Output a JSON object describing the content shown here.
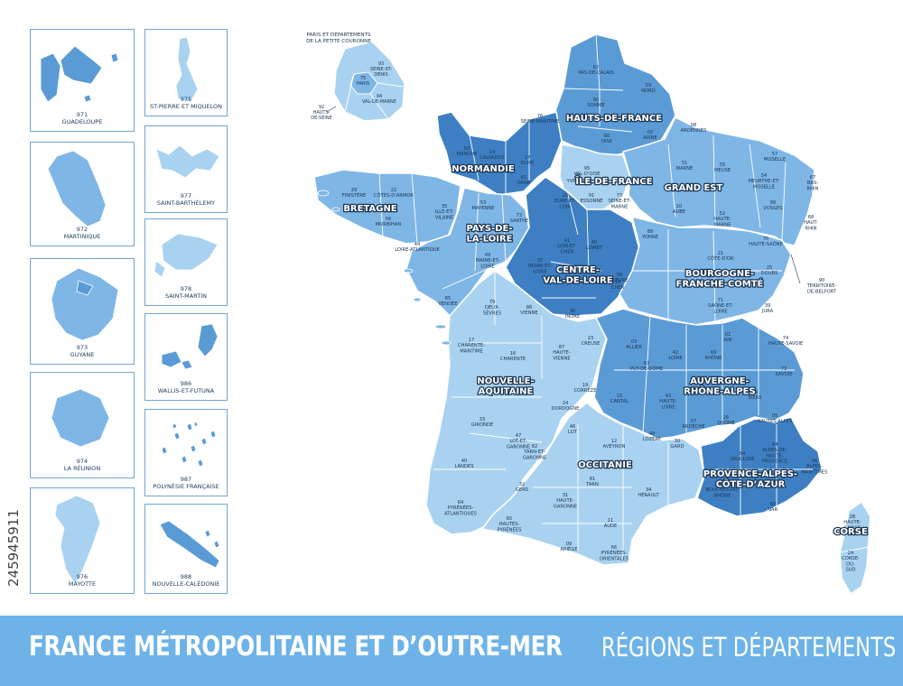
{
  "footer": {
    "title": "FRANCE MÉTROPOLITAINE ET D’OUTRE-MER",
    "subtitle": "RÉGIONS ET DÉPARTEMENTS"
  },
  "watermark": "245945911",
  "inset_paris": {
    "title_line1": "PARIS ET DÉPARTEMENTS",
    "title_line2": "DE LA PETITE COURONNE",
    "labels": [
      "93",
      "SEINE-ST-",
      "DENIS",
      "75",
      "PARIS",
      "94",
      "VAL-DE-MARNE",
      "92",
      "HAUTS-",
      "DE-SEINE"
    ]
  },
  "overseas": [
    {
      "code": "971",
      "name": "GUADELOUPE",
      "color": "#5b9bd5"
    },
    {
      "code": "975",
      "name": "ST-PIERRE ET MIQUELON",
      "color": "#a9d2f0"
    },
    {
      "code": "972",
      "name": "MARTINIQUE",
      "color": "#7eb6e6"
    },
    {
      "code": "977",
      "name": "SAINT-BARTHÉLEMY",
      "color": "#a9d2f0"
    },
    {
      "code": "973",
      "name": "GUYANE",
      "color": "#7eb6e6"
    },
    {
      "code": "978",
      "name": "SAINT-MARTIN",
      "color": "#a9d2f0"
    },
    {
      "code": "974",
      "name": "LA RÉUNION",
      "color": "#7eb6e6"
    },
    {
      "code": "986",
      "name": "WALLIS-ET-FUTUNA",
      "color": "#5b9bd5"
    },
    {
      "code": "976",
      "name": "MAYOTTE",
      "color": "#a9d2f0"
    },
    {
      "code": "987",
      "name": "POLYNÉSIE FRANÇAISE",
      "color": "#5b9bd5"
    },
    {
      "code": "988",
      "name": "NOUVELLE-CALÉDONIE",
      "color": "#5b9bd5"
    }
  ],
  "regions": [
    {
      "name": "HAUTS-DE-FRANCE",
      "lines": [
        "HAUTS-DE-FRANCE"
      ]
    },
    {
      "name": "NORMANDIE",
      "lines": [
        "NORMANDIE"
      ]
    },
    {
      "name": "ÎLE-DE-FRANCE",
      "lines": [
        "ÎLE-DE-FRANCE"
      ]
    },
    {
      "name": "GRAND EST",
      "lines": [
        "GRAND EST"
      ]
    },
    {
      "name": "BRETAGNE",
      "lines": [
        "BRETAGNE"
      ]
    },
    {
      "name": "PAYS-DE-LA-LOIRE",
      "lines": [
        "PAYS-DE-",
        "LA-LOIRE"
      ]
    },
    {
      "name": "CENTRE-VAL-DE-LOIRE",
      "lines": [
        "CENTRE-",
        "VAL-DE-LOIRE"
      ]
    },
    {
      "name": "BOURGOGNE-FRANCHE-COMTÉ",
      "lines": [
        "BOURGOGNE-",
        "FRANCHE-COMTÉ"
      ]
    },
    {
      "name": "NOUVELLE-AQUITAINE",
      "lines": [
        "NOUVELLE-",
        "AQUITAINE"
      ]
    },
    {
      "name": "AUVERGNE-RHÔNE-ALPES",
      "lines": [
        "AUVERGNE-",
        "RHÔNE-ALPES"
      ]
    },
    {
      "name": "OCCITANIE",
      "lines": [
        "OCCITANIE"
      ]
    },
    {
      "name": "PROVENCE-ALPES-CÔTE-D’AZUR",
      "lines": [
        "PROVENCE-ALPES-",
        "CÔTE-D’AZUR"
      ]
    },
    {
      "name": "CORSE",
      "lines": [
        "CORSE"
      ]
    }
  ],
  "departments": [
    {
      "lines": [
        "62",
        "PAS-DE-CALAIS"
      ]
    },
    {
      "lines": [
        "59",
        "NORD"
      ]
    },
    {
      "lines": [
        "80",
        "SOMME"
      ]
    },
    {
      "lines": [
        "60",
        "OISE"
      ]
    },
    {
      "lines": [
        "02",
        "AISNE"
      ]
    },
    {
      "lines": [
        "76",
        "SEINE-MARITIME"
      ]
    },
    {
      "lines": [
        "50",
        "MANCHE"
      ]
    },
    {
      "lines": [
        "14",
        "CALVADOS"
      ]
    },
    {
      "lines": [
        "27",
        "EURE"
      ]
    },
    {
      "lines": [
        "61",
        "ORNE"
      ]
    },
    {
      "lines": [
        "95",
        "VAL-D'OISE"
      ]
    },
    {
      "lines": [
        "78",
        "YVELINES"
      ]
    },
    {
      "lines": [
        "91",
        "ESSONNE"
      ]
    },
    {
      "lines": [
        "77",
        "SEINE-ET-",
        "MARNE"
      ]
    },
    {
      "lines": [
        "08",
        "ARDENNES"
      ]
    },
    {
      "lines": [
        "51",
        "MARNE"
      ]
    },
    {
      "lines": [
        "55",
        "MEUSE"
      ]
    },
    {
      "lines": [
        "57",
        "MOSELLE"
      ]
    },
    {
      "lines": [
        "54",
        "MEURTHE-ET-",
        "MOSELLE"
      ]
    },
    {
      "lines": [
        "67",
        "BAS-",
        "RHIN"
      ]
    },
    {
      "lines": [
        "10",
        "AUBE"
      ]
    },
    {
      "lines": [
        "52",
        "HAUTE-",
        "MARNE"
      ]
    },
    {
      "lines": [
        "88",
        "VOSGES"
      ]
    },
    {
      "lines": [
        "68",
        "HAUT-",
        "RHIN"
      ]
    },
    {
      "lines": [
        "29",
        "FINISTÈRE"
      ]
    },
    {
      "lines": [
        "22",
        "CÔTES-D'ARMOR"
      ]
    },
    {
      "lines": [
        "56",
        "MORBIHAN"
      ]
    },
    {
      "lines": [
        "35",
        "ILLE-ET-",
        "VILAINE"
      ]
    },
    {
      "lines": [
        "53",
        "MAYENNE"
      ]
    },
    {
      "lines": [
        "72",
        "SARTHE"
      ]
    },
    {
      "lines": [
        "44",
        "LOIRE-ATLANTIQUE"
      ]
    },
    {
      "lines": [
        "49",
        "MAINE-ET-",
        "LOIRE"
      ]
    },
    {
      "lines": [
        "85",
        "VENDÉE"
      ]
    },
    {
      "lines": [
        "28",
        "EURE-ET-",
        "LOIR"
      ]
    },
    {
      "lines": [
        "45",
        "LOIRET"
      ]
    },
    {
      "lines": [
        "41",
        "LOIR-ET-",
        "CHER"
      ]
    },
    {
      "lines": [
        "37",
        "INDRE-ET-",
        "LOIRE"
      ]
    },
    {
      "lines": [
        "18",
        "CHER"
      ]
    },
    {
      "lines": [
        "36",
        "INDRE"
      ]
    },
    {
      "lines": [
        "89",
        "YONNE"
      ]
    },
    {
      "lines": [
        "21",
        "CÔTE-D'OR"
      ]
    },
    {
      "lines": [
        "70",
        "HAUTE-SAÔNE"
      ]
    },
    {
      "lines": [
        "58",
        "NIÈVRE"
      ]
    },
    {
      "lines": [
        "25",
        "DOUBS"
      ]
    },
    {
      "lines": [
        "90",
        "TERRITOIRE-",
        "DE-BELFORT"
      ]
    },
    {
      "lines": [
        "71",
        "SAÔNE-ET-",
        "LOIRE"
      ]
    },
    {
      "lines": [
        "39",
        "JURA"
      ]
    },
    {
      "lines": [
        "79",
        "DEUX-",
        "SÈVRES"
      ]
    },
    {
      "lines": [
        "86",
        "VIENNE"
      ]
    },
    {
      "lines": [
        "17",
        "CHARENTE-",
        "MARITIME"
      ]
    },
    {
      "lines": [
        "16",
        "CHARENTE"
      ]
    },
    {
      "lines": [
        "87",
        "HAUTE-",
        "VIENNE"
      ]
    },
    {
      "lines": [
        "23",
        "CREUSE"
      ]
    },
    {
      "lines": [
        "19",
        "CORRÈZE"
      ]
    },
    {
      "lines": [
        "24",
        "DORDOGNE"
      ]
    },
    {
      "lines": [
        "33",
        "GIRONDE"
      ]
    },
    {
      "lines": [
        "47",
        "LOT-ET-",
        "GARONNE"
      ]
    },
    {
      "lines": [
        "40",
        "LANDES"
      ]
    },
    {
      "lines": [
        "64",
        "PYRÉNÉES-",
        "ATLANTIQUES"
      ]
    },
    {
      "lines": [
        "03",
        "ALLIER"
      ]
    },
    {
      "lines": [
        "63",
        "PUY-DE-DÔME"
      ]
    },
    {
      "lines": [
        "42",
        "LOIRE"
      ]
    },
    {
      "lines": [
        "69",
        "RHÔNE"
      ]
    },
    {
      "lines": [
        "01",
        "AIN"
      ]
    },
    {
      "lines": [
        "74",
        "HAUTE-SAVOIE"
      ]
    },
    {
      "lines": [
        "73",
        "SAVOIE"
      ]
    },
    {
      "lines": [
        "38",
        "ISÈRE"
      ]
    },
    {
      "lines": [
        "15",
        "CANTAL"
      ]
    },
    {
      "lines": [
        "43",
        "HAUTE-",
        "LOIRE"
      ]
    },
    {
      "lines": [
        "07",
        "ARDÈCHE"
      ]
    },
    {
      "lines": [
        "26",
        "DRÔME"
      ]
    },
    {
      "lines": [
        "46",
        "LOT"
      ]
    },
    {
      "lines": [
        "12",
        "AVEYRON"
      ]
    },
    {
      "lines": [
        "48",
        "LOZÈRE"
      ]
    },
    {
      "lines": [
        "82",
        "TARN-ET-",
        "GARONNE"
      ]
    },
    {
      "lines": [
        "81",
        "TARN"
      ]
    },
    {
      "lines": [
        "30",
        "GARD"
      ]
    },
    {
      "lines": [
        "32",
        "GERS"
      ]
    },
    {
      "lines": [
        "31",
        "HAUTE-",
        "GARONNE"
      ]
    },
    {
      "lines": [
        "34",
        "HÉRAULT"
      ]
    },
    {
      "lines": [
        "65",
        "HAUTES-",
        "PYRÉNÉES"
      ]
    },
    {
      "lines": [
        "09",
        "ARIÈGE"
      ]
    },
    {
      "lines": [
        "11",
        "AUDE"
      ]
    },
    {
      "lines": [
        "66",
        "PYRÉNÉES-",
        "ORIENTALES"
      ]
    },
    {
      "lines": [
        "05",
        "HAUTES-ALPES"
      ]
    },
    {
      "lines": [
        "04",
        "ALPES-DE-",
        "HAUTE-",
        "PROVENCE"
      ]
    },
    {
      "lines": [
        "06",
        "ALPES-",
        "MARITIMES"
      ]
    },
    {
      "lines": [
        "84",
        "VAUCLUSE"
      ]
    },
    {
      "lines": [
        "13",
        "BOUCHES-DU-",
        "RHÔNE"
      ]
    },
    {
      "lines": [
        "83",
        "VAR"
      ]
    },
    {
      "lines": [
        "2B",
        "HAUTE-",
        "CORSE"
      ]
    },
    {
      "lines": [
        "2A",
        "CORSE-",
        "DU-",
        "SUD"
      ]
    }
  ],
  "colors": {
    "light": "#a9d2f0",
    "mid": "#7eb6e6",
    "medium": "#5b9bd5",
    "dark": "#3d7fc2",
    "border": "#ffffff",
    "label": "#1c3552",
    "footer": "#6db3e8"
  }
}
